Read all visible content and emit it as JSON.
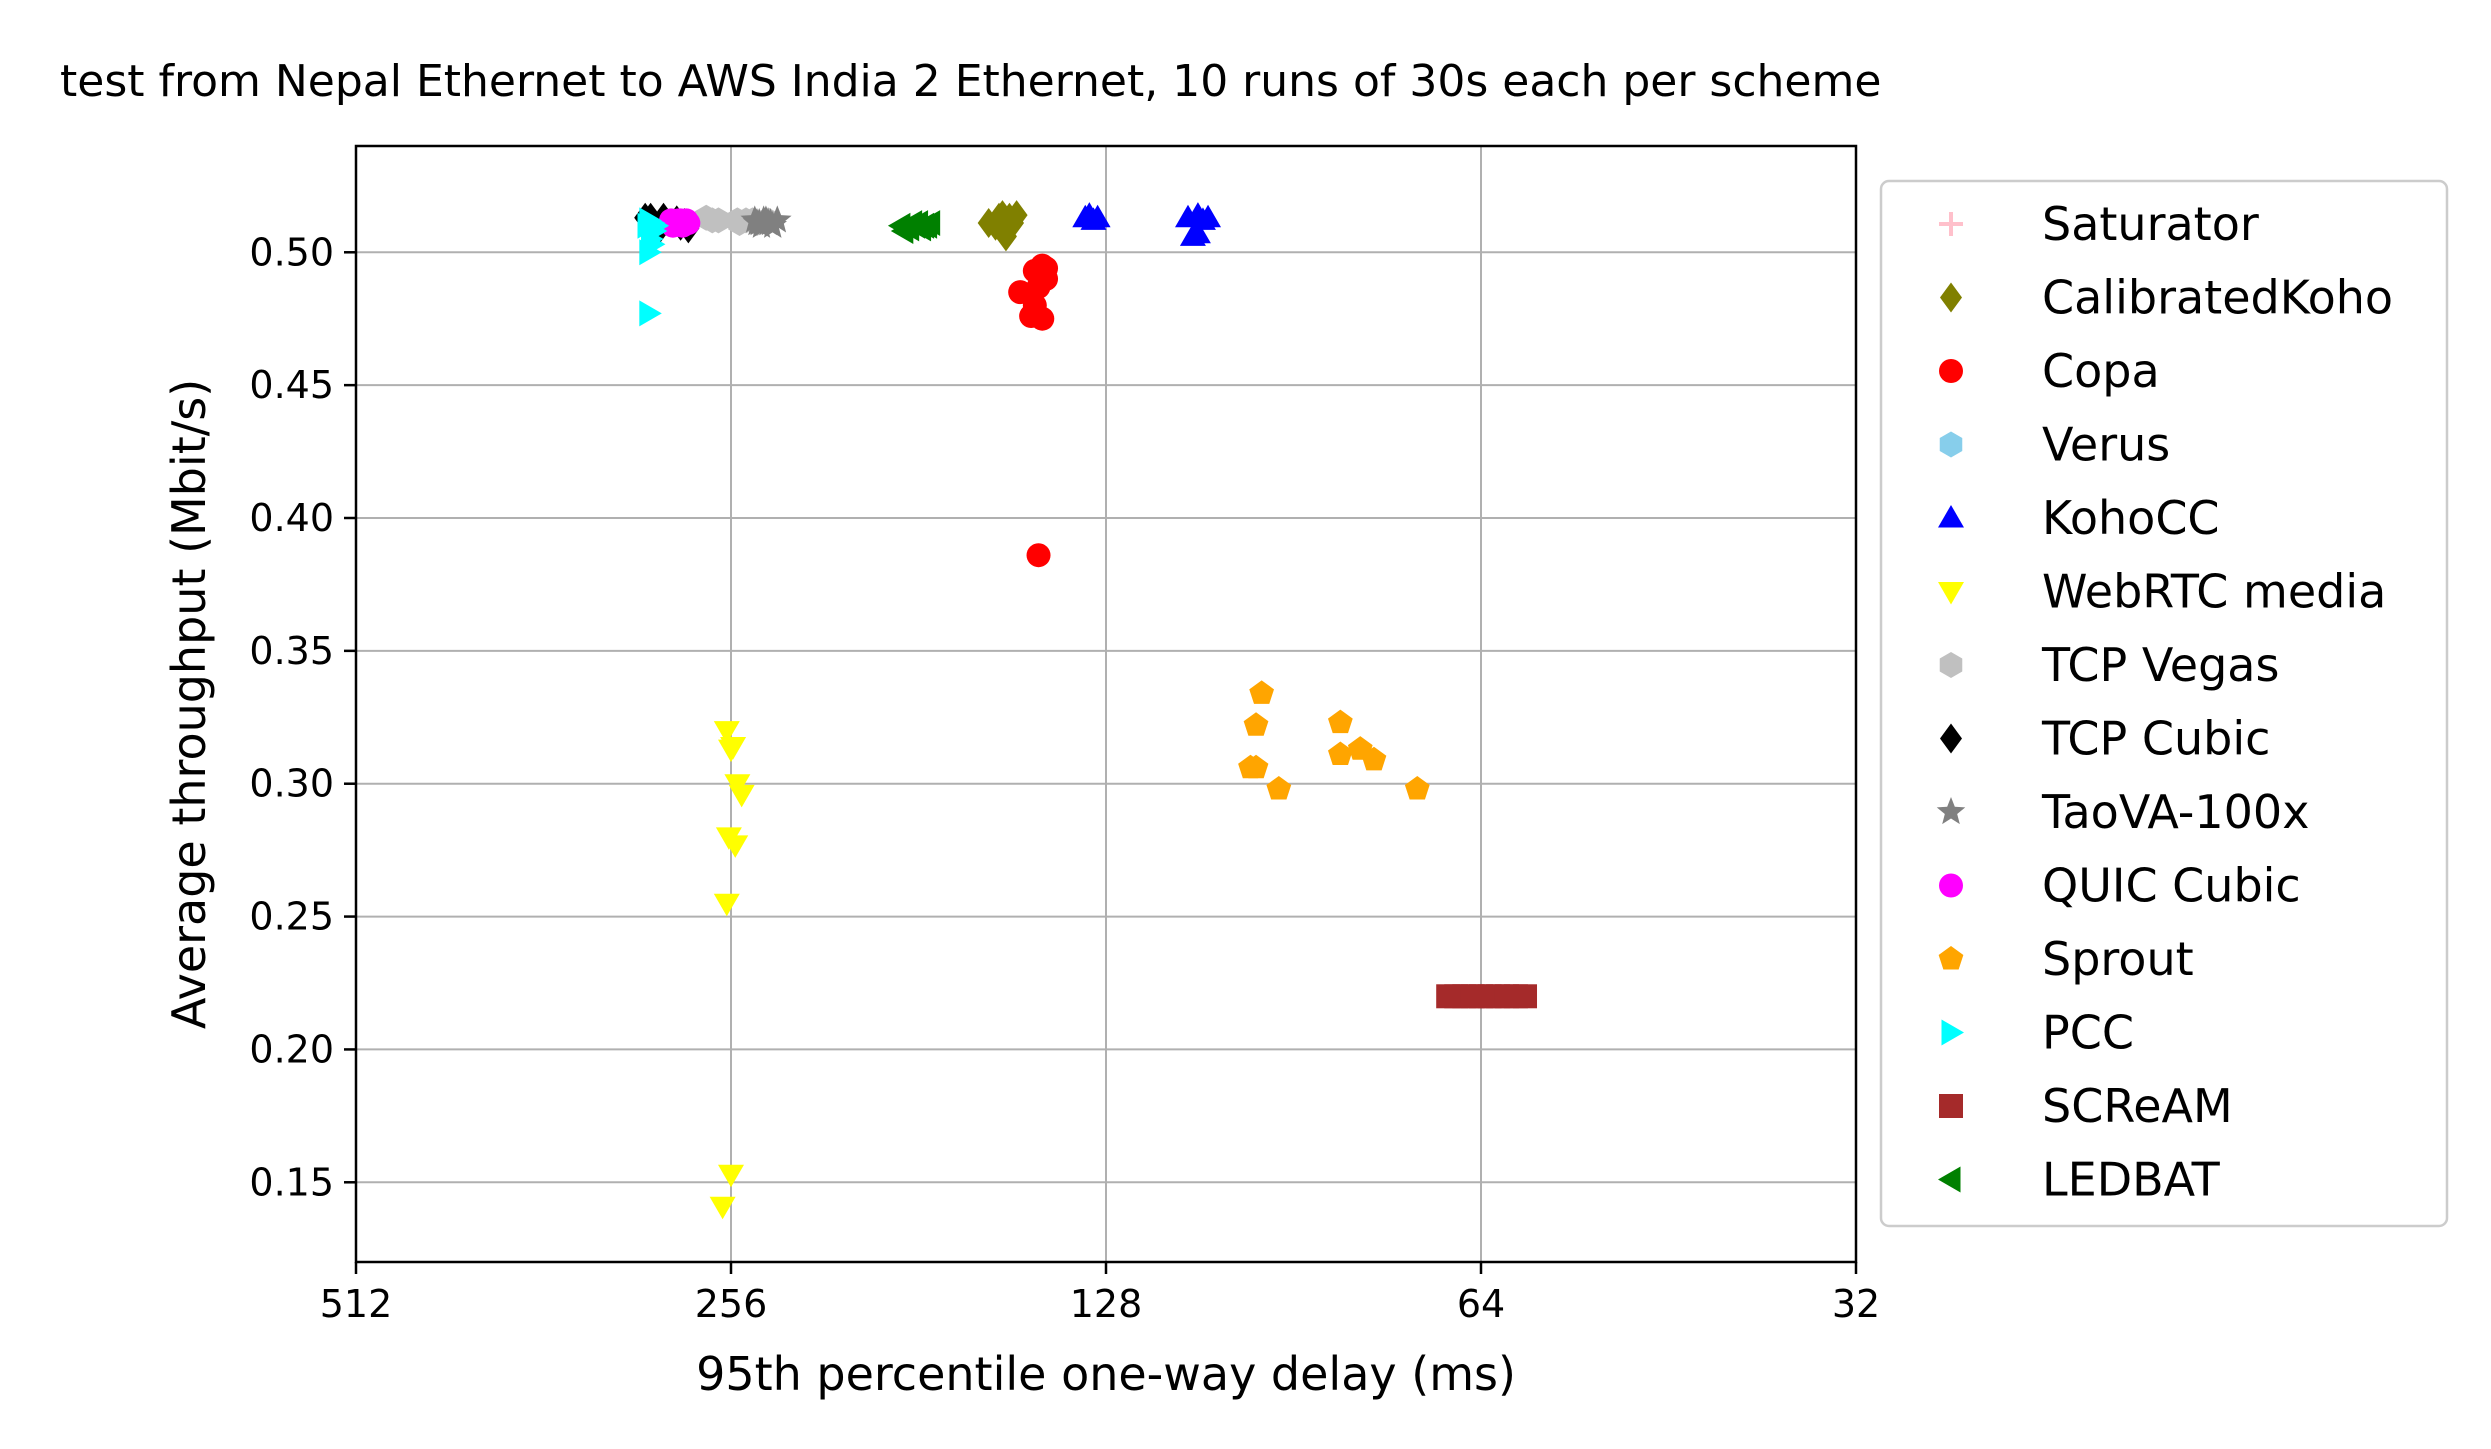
{
  "chart_data": {
    "type": "scatter",
    "title": "test from Nepal Ethernet to AWS India 2 Ethernet, 10 runs of 30s each per scheme",
    "xlabel": "95th percentile one-way delay (ms)",
    "ylabel": "Average throughput (Mbit/s)",
    "x_scale": "log2",
    "x_inverted": true,
    "xlim": [
      512,
      32
    ],
    "ylim": [
      0.12,
      0.54
    ],
    "x_ticks": [
      512,
      256,
      128,
      64,
      32
    ],
    "x_tick_labels": [
      "512",
      "256",
      "128",
      "64",
      "32"
    ],
    "y_ticks": [
      0.15,
      0.2,
      0.25,
      0.3,
      0.35,
      0.4,
      0.45,
      0.5
    ],
    "y_tick_labels": [
      "0.15",
      "0.20",
      "0.25",
      "0.30",
      "0.35",
      "0.40",
      "0.45",
      "0.50"
    ],
    "grid": true,
    "legend_position": "outside-right",
    "series": [
      {
        "name": "Saturator",
        "marker": "plus",
        "color": "#ffc0cb",
        "points": []
      },
      {
        "name": "CalibratedKoho",
        "marker": "diamond",
        "color": "#808000",
        "points": [
          [
            159,
            0.511
          ],
          [
            156,
            0.513
          ],
          [
            155,
            0.514
          ],
          [
            154,
            0.512
          ],
          [
            153,
            0.513
          ],
          [
            151,
            0.514
          ],
          [
            157,
            0.51
          ],
          [
            155,
            0.508
          ],
          [
            154,
            0.506
          ],
          [
            152,
            0.511
          ]
        ]
      },
      {
        "name": "Copa",
        "marker": "circle",
        "color": "#ff0000",
        "points": [
          [
            150,
            0.485
          ],
          [
            146,
            0.493
          ],
          [
            144,
            0.495
          ],
          [
            143,
            0.49
          ],
          [
            145,
            0.487
          ],
          [
            147,
            0.476
          ],
          [
            144,
            0.475
          ],
          [
            145,
            0.386
          ],
          [
            143,
            0.494
          ],
          [
            146,
            0.48
          ]
        ]
      },
      {
        "name": "Verus",
        "marker": "hexagon",
        "color": "#87ceeb",
        "points": []
      },
      {
        "name": "KohoCC",
        "marker": "triangle-up",
        "color": "#0000ff",
        "points": [
          [
            133,
            0.513
          ],
          [
            131,
            0.512
          ],
          [
            130,
            0.513
          ],
          [
            110,
            0.513
          ],
          [
            108,
            0.514
          ],
          [
            106,
            0.513
          ],
          [
            109,
            0.506
          ],
          [
            108,
            0.507
          ],
          [
            132,
            0.514
          ],
          [
            107,
            0.512
          ]
        ]
      },
      {
        "name": "WebRTC media",
        "marker": "triangle-down",
        "color": "#ffff00",
        "points": [
          [
            258,
            0.32
          ],
          [
            256,
            0.313
          ],
          [
            253,
            0.3
          ],
          [
            251,
            0.296
          ],
          [
            257,
            0.28
          ],
          [
            254,
            0.277
          ],
          [
            258,
            0.255
          ],
          [
            260,
            0.141
          ],
          [
            256,
            0.153
          ],
          [
            255,
            0.314
          ]
        ]
      },
      {
        "name": "TCP Vegas",
        "marker": "hexagon",
        "color": "#c0c0c0",
        "points": [
          [
            265,
            0.512
          ],
          [
            253,
            0.512
          ],
          [
            239,
            0.512
          ],
          [
            244,
            0.511
          ],
          [
            249,
            0.512
          ],
          [
            268,
            0.513
          ],
          [
            240,
            0.512
          ],
          [
            252,
            0.511
          ],
          [
            262,
            0.512
          ],
          [
            246,
            0.512
          ]
        ]
      },
      {
        "name": "TCP Cubic",
        "marker": "diamond",
        "color": "#000000",
        "points": [
          [
            297,
            0.513
          ],
          [
            295,
            0.511
          ],
          [
            292,
            0.509
          ],
          [
            283,
            0.512
          ],
          [
            279,
            0.511
          ],
          [
            277,
            0.509
          ],
          [
            300,
            0.513
          ],
          [
            281,
            0.51
          ],
          [
            290,
            0.513
          ],
          [
            298,
            0.51
          ]
        ]
      },
      {
        "name": "TaoVA-100x",
        "marker": "star",
        "color": "#808080",
        "points": [
          [
            244,
            0.511
          ],
          [
            241,
            0.512
          ],
          [
            238,
            0.511
          ],
          [
            235,
            0.512
          ],
          [
            242,
            0.51
          ],
          [
            245,
            0.512
          ],
          [
            239,
            0.511
          ],
          [
            237,
            0.51
          ],
          [
            243,
            0.511
          ],
          [
            240,
            0.512
          ]
        ]
      },
      {
        "name": "QUIC Cubic",
        "marker": "circle",
        "color": "#ff00ff",
        "points": [
          [
            283,
            0.511
          ],
          [
            281,
            0.512
          ],
          [
            279,
            0.511
          ],
          [
            285,
            0.51
          ],
          [
            280,
            0.51
          ],
          [
            282,
            0.512
          ],
          [
            278,
            0.512
          ],
          [
            284,
            0.511
          ],
          [
            286,
            0.512
          ],
          [
            277,
            0.511
          ]
        ]
      },
      {
        "name": "Sprout",
        "marker": "pentagon",
        "color": "#ffa500",
        "points": [
          [
            96,
            0.334
          ],
          [
            97,
            0.322
          ],
          [
            98,
            0.306
          ],
          [
            97,
            0.306
          ],
          [
            93,
            0.298
          ],
          [
            83,
            0.323
          ],
          [
            83,
            0.311
          ],
          [
            80,
            0.313
          ],
          [
            78,
            0.309
          ],
          [
            72,
            0.298
          ]
        ]
      },
      {
        "name": "PCC",
        "marker": "triangle-right",
        "color": "#00ffff",
        "points": [
          [
            298,
            0.512
          ],
          [
            296,
            0.511
          ],
          [
            298,
            0.5
          ],
          [
            296,
            0.503
          ],
          [
            295,
            0.508
          ],
          [
            298,
            0.477
          ],
          [
            297,
            0.509
          ],
          [
            294,
            0.51
          ],
          [
            297,
            0.505
          ],
          [
            299,
            0.51
          ]
        ]
      },
      {
        "name": "SCReAM",
        "marker": "square",
        "color": "#a52a2a",
        "points": [
          [
            68,
            0.22
          ],
          [
            67,
            0.22
          ],
          [
            66,
            0.22
          ],
          [
            65,
            0.22
          ],
          [
            64,
            0.22
          ],
          [
            63,
            0.22
          ],
          [
            62,
            0.22
          ],
          [
            61,
            0.22
          ],
          [
            60,
            0.22
          ],
          [
            59,
            0.22
          ]
        ]
      },
      {
        "name": "LEDBAT",
        "marker": "triangle-left",
        "color": "#008000",
        "points": [
          [
            187,
            0.51
          ],
          [
            184,
            0.509
          ],
          [
            181,
            0.511
          ],
          [
            179,
            0.51
          ],
          [
            177,
            0.511
          ],
          [
            182,
            0.51
          ],
          [
            186,
            0.508
          ],
          [
            183,
            0.511
          ],
          [
            180,
            0.509
          ],
          [
            178,
            0.51
          ]
        ]
      }
    ]
  }
}
